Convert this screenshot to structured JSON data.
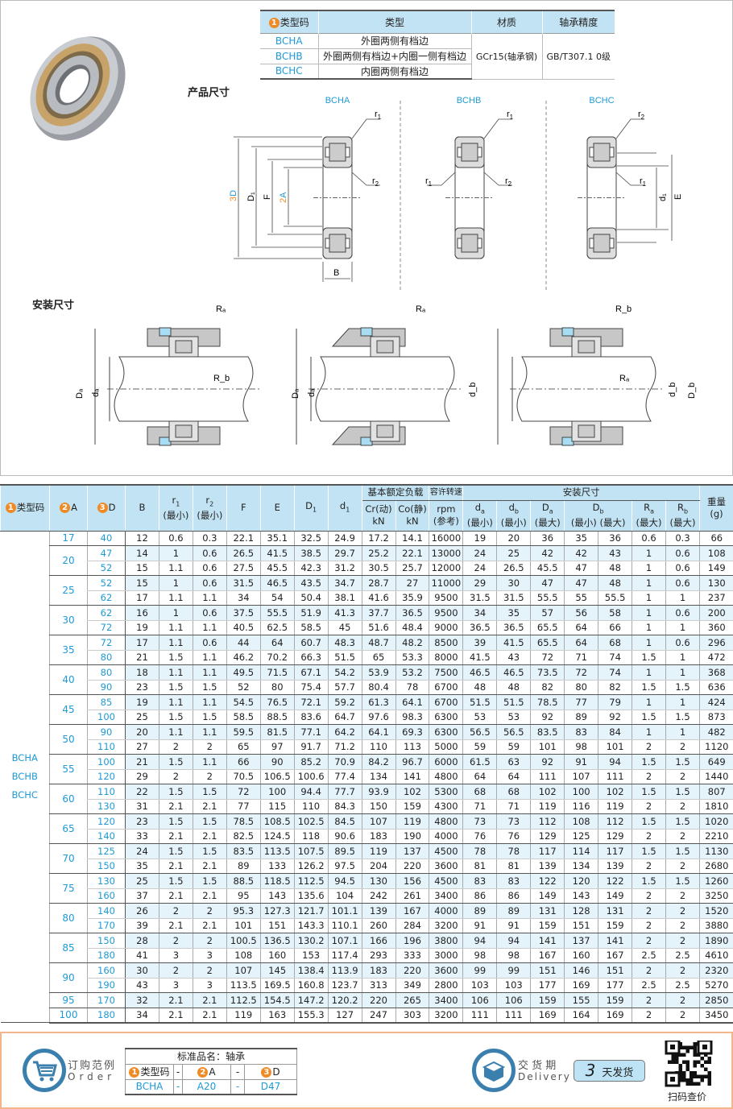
{
  "type_table": {
    "headers": {
      "num": "1",
      "code": "类型码",
      "type": "类型",
      "material": "材质",
      "precision": "轴承精度"
    },
    "rows": [
      {
        "code": "BCHA",
        "type": "外圈两侧有档边"
      },
      {
        "code": "BCHB",
        "type": "外圈两侧有档边+内圈一侧有档边"
      },
      {
        "code": "BCHC",
        "type": "内圈两侧有档边"
      }
    ],
    "material": "GCr15(轴承钢)",
    "precision": "GB/T307.1 0级"
  },
  "sections": {
    "product_dims": "产品尺寸",
    "install_dims": "安装尺寸"
  },
  "diagrams": {
    "titles": [
      "BCHA",
      "BCHB",
      "BCHC"
    ],
    "labels": {
      "r1": "r",
      "r1_sub": "1",
      "r2": "r",
      "r2_sub": "2",
      "D": "D",
      "D_num": "3",
      "D1": "D₁",
      "F": "F",
      "A": "A",
      "A_num": "2",
      "B": "B",
      "d1": "d₁",
      "E": "E",
      "Ra": "Rₐ",
      "Rb": "R_b",
      "Da": "Dₐ",
      "da": "dₐ",
      "db": "d_b",
      "Db": "D_b"
    }
  },
  "main_table": {
    "headers": {
      "type_num": "1",
      "type": "类型码",
      "A_num": "2",
      "A": "A",
      "D_num": "3",
      "D": "D",
      "B": "B",
      "r1": {
        "sym": "r",
        "sub": "1",
        "note": "(最小)"
      },
      "r2": {
        "sym": "r",
        "sub": "2",
        "note": "(最小)"
      },
      "F": "F",
      "E": "E",
      "D1": {
        "sym": "D",
        "sub": "1"
      },
      "d1": {
        "sym": "d",
        "sub": "1"
      },
      "load": "基本额定负载",
      "Cr": {
        "line1": "Cr(动)",
        "line2": "kN"
      },
      "Co": {
        "line1": "Co(静)",
        "line2": "kN"
      },
      "speed": "容许转速",
      "rpm": {
        "line1": "rpm",
        "line2": "(参考)"
      },
      "install": "安装尺寸",
      "da": {
        "sym": "d",
        "sub": "a",
        "note": "(最小)"
      },
      "db": {
        "sym": "d",
        "sub": "b",
        "note": "(最小)"
      },
      "Da": {
        "sym": "D",
        "sub": "a",
        "note": "(最大)"
      },
      "Db": {
        "sym": "D",
        "sub": "b",
        "min": "(最小)",
        "max": "(最大)"
      },
      "Ra": {
        "sym": "R",
        "sub": "a",
        "note": "(最大)"
      },
      "Rb": {
        "sym": "R",
        "sub": "b",
        "note": "(最大)"
      },
      "weight": {
        "line1": "重量",
        "line2": "(g)"
      }
    },
    "type_codes": [
      "BCHA",
      "BCHB",
      "BCHC"
    ],
    "columns": [
      "D",
      "B",
      "r1",
      "r2",
      "F",
      "E",
      "D1",
      "d1",
      "Cr",
      "Co",
      "rpm",
      "da",
      "db",
      "Da",
      "Db_min",
      "Db_max",
      "Ra",
      "Rb",
      "weight"
    ],
    "groups": [
      {
        "A": "17",
        "rows": [
          [
            "40",
            "12",
            "0.6",
            "0.3",
            "22.1",
            "35.1",
            "32.5",
            "24.9",
            "17.2",
            "14.1",
            "16000",
            "19",
            "20",
            "36",
            "35",
            "36",
            "0.6",
            "0.3",
            "66"
          ]
        ]
      },
      {
        "A": "20",
        "rows": [
          [
            "47",
            "14",
            "1",
            "0.6",
            "26.5",
            "41.5",
            "38.5",
            "29.7",
            "25.2",
            "22.1",
            "13000",
            "24",
            "25",
            "42",
            "42",
            "43",
            "1",
            "0.6",
            "108"
          ],
          [
            "52",
            "15",
            "1.1",
            "0.6",
            "27.5",
            "45.5",
            "42.3",
            "31.2",
            "30.5",
            "25.7",
            "12000",
            "24",
            "26.5",
            "45.5",
            "47",
            "48",
            "1",
            "0.6",
            "149"
          ]
        ]
      },
      {
        "A": "25",
        "rows": [
          [
            "52",
            "15",
            "1",
            "0.6",
            "31.5",
            "46.5",
            "43.5",
            "34.7",
            "28.7",
            "27",
            "11000",
            "29",
            "30",
            "47",
            "47",
            "48",
            "1",
            "0.6",
            "130"
          ],
          [
            "62",
            "17",
            "1.1",
            "1.1",
            "34",
            "54",
            "50.4",
            "38.1",
            "41.6",
            "35.9",
            "9500",
            "31.5",
            "31.5",
            "55.5",
            "55",
            "55.5",
            "1",
            "1",
            "237"
          ]
        ]
      },
      {
        "A": "30",
        "rows": [
          [
            "62",
            "16",
            "1",
            "0.6",
            "37.5",
            "55.5",
            "51.9",
            "41.3",
            "37.7",
            "36.5",
            "9500",
            "34",
            "35",
            "57",
            "56",
            "58",
            "1",
            "0.6",
            "200"
          ],
          [
            "72",
            "19",
            "1.1",
            "1.1",
            "40.5",
            "62.5",
            "58.5",
            "45",
            "51.6",
            "48.4",
            "9000",
            "36.5",
            "36.5",
            "65.5",
            "64",
            "66",
            "1",
            "1",
            "360"
          ]
        ]
      },
      {
        "A": "35",
        "rows": [
          [
            "72",
            "17",
            "1.1",
            "0.6",
            "44",
            "64",
            "60.7",
            "48.3",
            "48.7",
            "48.2",
            "8500",
            "39",
            "41.5",
            "65.5",
            "64",
            "68",
            "1",
            "0.6",
            "296"
          ],
          [
            "80",
            "21",
            "1.5",
            "1.1",
            "46.2",
            "70.2",
            "66.3",
            "51.5",
            "65",
            "53.3",
            "8000",
            "41.5",
            "43",
            "72",
            "71",
            "74",
            "1.5",
            "1",
            "472"
          ]
        ]
      },
      {
        "A": "40",
        "rows": [
          [
            "80",
            "18",
            "1.1",
            "1.1",
            "49.5",
            "71.5",
            "67.1",
            "54.2",
            "53.9",
            "53.2",
            "7500",
            "46.5",
            "46.5",
            "73.5",
            "72",
            "74",
            "1",
            "1",
            "368"
          ],
          [
            "90",
            "23",
            "1.5",
            "1.5",
            "52",
            "80",
            "75.4",
            "57.7",
            "80.4",
            "78",
            "6700",
            "48",
            "48",
            "82",
            "80",
            "82",
            "1.5",
            "1.5",
            "636"
          ]
        ]
      },
      {
        "A": "45",
        "rows": [
          [
            "85",
            "19",
            "1.1",
            "1.1",
            "54.5",
            "76.5",
            "72.1",
            "59.2",
            "61.3",
            "64.1",
            "6700",
            "51.5",
            "51.5",
            "78.5",
            "77",
            "79",
            "1",
            "1",
            "424"
          ],
          [
            "100",
            "25",
            "1.5",
            "1.5",
            "58.5",
            "88.5",
            "83.6",
            "64.7",
            "97.6",
            "98.3",
            "6300",
            "53",
            "53",
            "92",
            "89",
            "92",
            "1.5",
            "1.5",
            "873"
          ]
        ]
      },
      {
        "A": "50",
        "rows": [
          [
            "90",
            "20",
            "1.1",
            "1.1",
            "59.5",
            "81.5",
            "77.1",
            "64.2",
            "64.1",
            "69.3",
            "6300",
            "56.5",
            "56.5",
            "83.5",
            "83",
            "84",
            "1",
            "1",
            "482"
          ],
          [
            "110",
            "27",
            "2",
            "2",
            "65",
            "97",
            "91.7",
            "71.2",
            "110",
            "113",
            "5000",
            "59",
            "59",
            "101",
            "98",
            "101",
            "2",
            "2",
            "1120"
          ]
        ]
      },
      {
        "A": "55",
        "rows": [
          [
            "100",
            "21",
            "1.5",
            "1.1",
            "66",
            "90",
            "85.2",
            "70.9",
            "84.2",
            "96.7",
            "6000",
            "61.5",
            "63",
            "92",
            "91",
            "94",
            "1.5",
            "1.5",
            "649"
          ],
          [
            "120",
            "29",
            "2",
            "2",
            "70.5",
            "106.5",
            "100.6",
            "77.4",
            "134",
            "141",
            "4800",
            "64",
            "64",
            "111",
            "107",
            "111",
            "2",
            "2",
            "1440"
          ]
        ]
      },
      {
        "A": "60",
        "rows": [
          [
            "110",
            "22",
            "1.5",
            "1.5",
            "72",
            "100",
            "94.4",
            "77.7",
            "93.9",
            "102",
            "5300",
            "68",
            "68",
            "102",
            "100",
            "102",
            "1.5",
            "1.5",
            "807"
          ],
          [
            "130",
            "31",
            "2.1",
            "2.1",
            "77",
            "115",
            "110",
            "84.3",
            "150",
            "159",
            "4300",
            "71",
            "71",
            "119",
            "116",
            "119",
            "2",
            "2",
            "1810"
          ]
        ]
      },
      {
        "A": "65",
        "rows": [
          [
            "120",
            "23",
            "1.5",
            "1.5",
            "78.5",
            "108.5",
            "102.5",
            "84.5",
            "107",
            "119",
            "4800",
            "73",
            "73",
            "112",
            "108",
            "112",
            "1.5",
            "1.5",
            "1020"
          ],
          [
            "140",
            "33",
            "2.1",
            "2.1",
            "82.5",
            "124.5",
            "118",
            "90.6",
            "183",
            "190",
            "4000",
            "76",
            "76",
            "129",
            "125",
            "129",
            "2",
            "2",
            "2210"
          ]
        ]
      },
      {
        "A": "70",
        "rows": [
          [
            "125",
            "24",
            "1.5",
            "1.5",
            "83.5",
            "113.5",
            "107.5",
            "89.5",
            "119",
            "137",
            "4500",
            "78",
            "78",
            "117",
            "114",
            "117",
            "1.5",
            "1.5",
            "1130"
          ],
          [
            "150",
            "35",
            "2.1",
            "2.1",
            "89",
            "133",
            "126.2",
            "97.5",
            "204",
            "220",
            "3600",
            "81",
            "81",
            "139",
            "134",
            "139",
            "2",
            "2",
            "2680"
          ]
        ]
      },
      {
        "A": "75",
        "rows": [
          [
            "130",
            "25",
            "1.5",
            "1.5",
            "88.5",
            "118.5",
            "112.5",
            "94.5",
            "130",
            "156",
            "4500",
            "83",
            "83",
            "122",
            "120",
            "122",
            "1.5",
            "1.5",
            "1260"
          ],
          [
            "160",
            "37",
            "2.1",
            "2.1",
            "95",
            "143",
            "135.6",
            "104",
            "242",
            "261",
            "3400",
            "86",
            "86",
            "149",
            "143",
            "149",
            "2",
            "2",
            "3250"
          ]
        ]
      },
      {
        "A": "80",
        "rows": [
          [
            "140",
            "26",
            "2",
            "2",
            "95.3",
            "127.3",
            "121.7",
            "101.1",
            "139",
            "167",
            "4000",
            "89",
            "89",
            "131",
            "128",
            "131",
            "2",
            "2",
            "1520"
          ],
          [
            "170",
            "39",
            "2.1",
            "2.1",
            "101",
            "151",
            "143.3",
            "110.1",
            "260",
            "284",
            "3200",
            "91",
            "91",
            "159",
            "151",
            "159",
            "2",
            "2",
            "3880"
          ]
        ]
      },
      {
        "A": "85",
        "rows": [
          [
            "150",
            "28",
            "2",
            "2",
            "100.5",
            "136.5",
            "130.2",
            "107.1",
            "166",
            "196",
            "3800",
            "94",
            "94",
            "141",
            "137",
            "141",
            "2",
            "2",
            "1890"
          ],
          [
            "180",
            "41",
            "3",
            "3",
            "108",
            "160",
            "153",
            "117.4",
            "293",
            "333",
            "3000",
            "98",
            "98",
            "167",
            "160",
            "167",
            "2.5",
            "2.5",
            "4610"
          ]
        ]
      },
      {
        "A": "90",
        "rows": [
          [
            "160",
            "30",
            "2",
            "2",
            "107",
            "145",
            "138.4",
            "113.9",
            "183",
            "220",
            "3600",
            "99",
            "99",
            "151",
            "146",
            "151",
            "2",
            "2",
            "2320"
          ],
          [
            "190",
            "43",
            "3",
            "3",
            "113.5",
            "169.5",
            "160.8",
            "123.7",
            "313",
            "349",
            "2800",
            "103",
            "103",
            "177",
            "169",
            "177",
            "2.5",
            "2.5",
            "5270"
          ]
        ]
      },
      {
        "A": "95",
        "rows": [
          [
            "170",
            "32",
            "2.1",
            "2.1",
            "112.5",
            "154.5",
            "147.2",
            "120.2",
            "220",
            "265",
            "3400",
            "106",
            "106",
            "159",
            "155",
            "159",
            "2",
            "2",
            "2850"
          ]
        ]
      },
      {
        "A": "100",
        "rows": [
          [
            "180",
            "34",
            "2.1",
            "2.1",
            "119",
            "163",
            "155.3",
            "127",
            "247",
            "303",
            "3200",
            "111",
            "111",
            "169",
            "164",
            "169",
            "2",
            "2",
            "3450"
          ]
        ]
      }
    ]
  },
  "footer": {
    "order_title": "订购范例",
    "order_en": "Order",
    "std_name": "标准品名：轴承",
    "order_headers": {
      "n1": "1",
      "code": "类型码",
      "dash": "-",
      "n2": "2",
      "A": "A",
      "n3": "3",
      "D": "D"
    },
    "order_example": {
      "code": "BCHA",
      "A": "A20",
      "D": "D47"
    },
    "delivery_title": "交 货 期",
    "delivery_en": "Delivery",
    "delivery_days": "3",
    "delivery_label": "天发货",
    "qr_label": "扫码查价"
  },
  "colors": {
    "accent": "#1e9ad6",
    "header_bg": "#c2e3f3",
    "badge": "#f08a24",
    "icon": "#3b7fae"
  }
}
